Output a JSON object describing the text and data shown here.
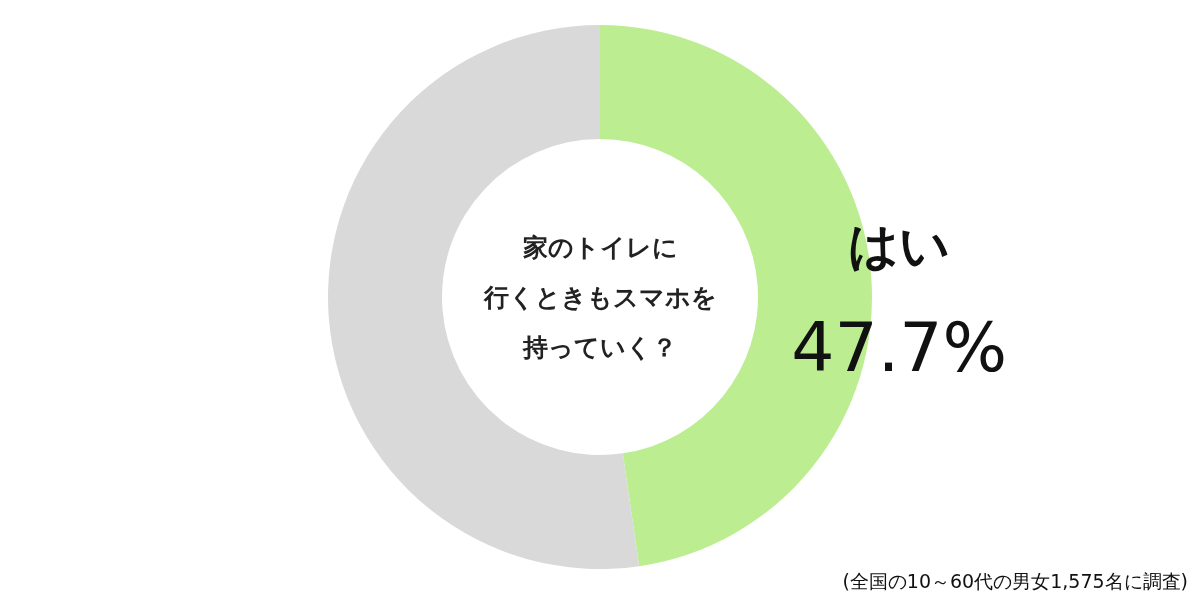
{
  "chart_data": {
    "type": "donut",
    "title": "家のトイレに行くときもスマホを持っていく？",
    "categories": [
      "はい",
      null
    ],
    "values": [
      47.7,
      52.3
    ],
    "colors": [
      "#bcee91",
      "#d9d9d9"
    ],
    "value_labels": [
      "47.7%",
      null
    ],
    "annotations": [
      "(全国の10～60代の男女1,575名に調査)"
    ]
  }
}
